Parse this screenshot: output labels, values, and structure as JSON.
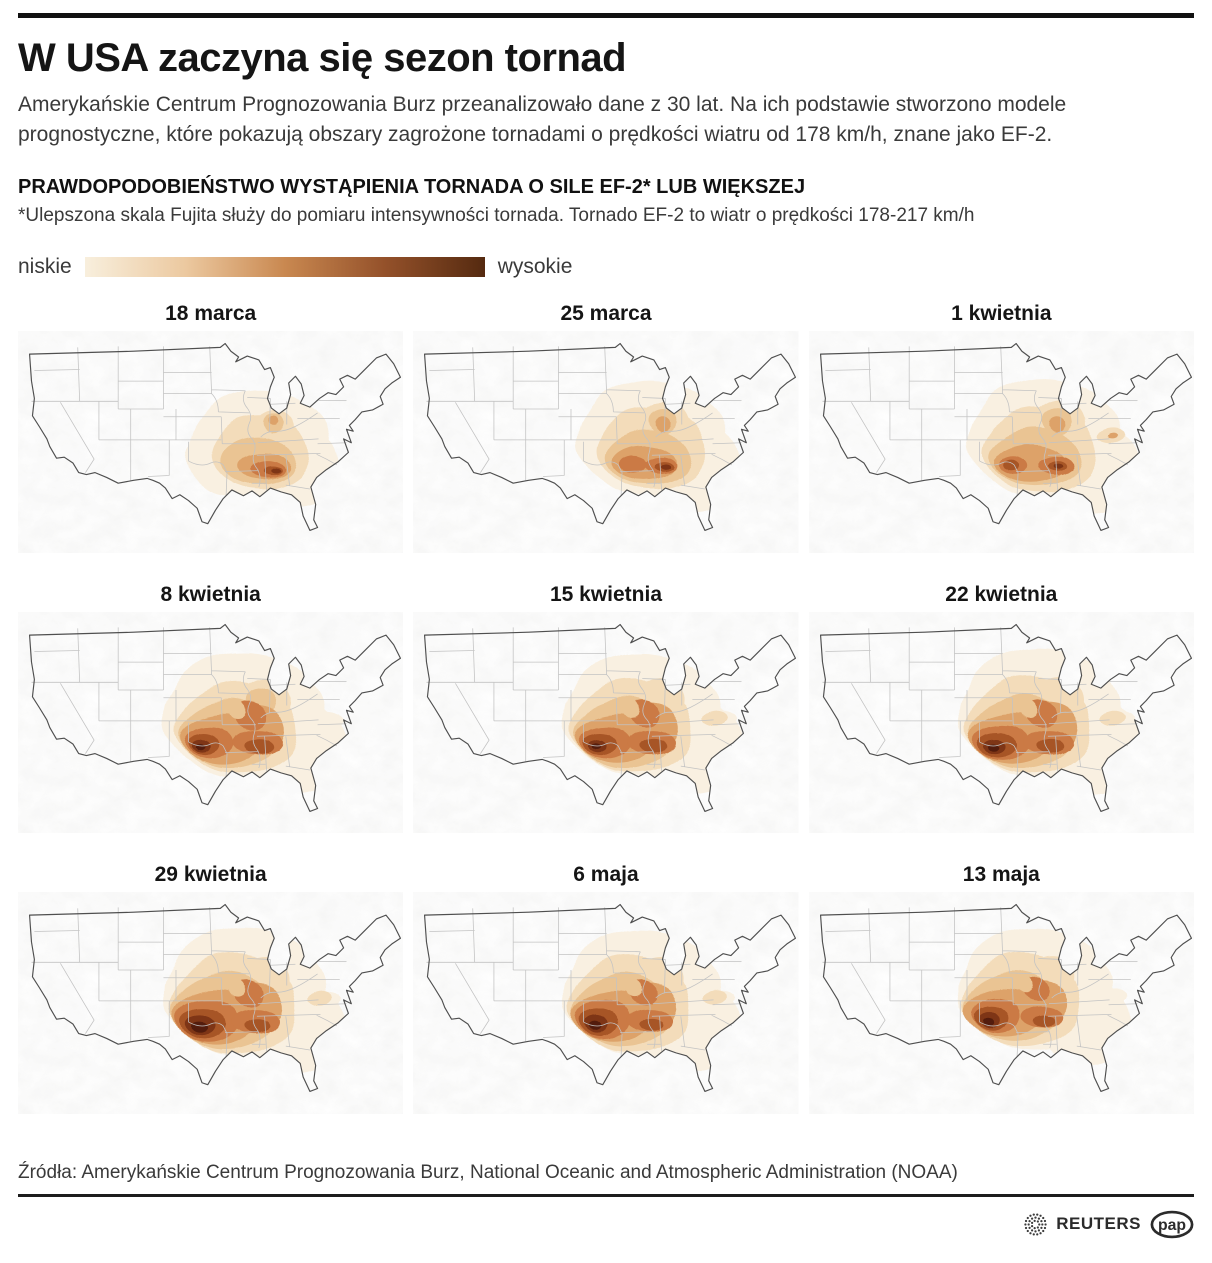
{
  "header": {
    "title": "W USA zaczyna się sezon tornad",
    "subtitle": "Amerykańskie Centrum Prognozowania Burz przeanalizowało dane z 30 lat. Na ich podstawie stworzono modele prognostyczne, które pokazują obszary zagrożone tornadami o prędkości wiatru od 178 km/h, znane jako EF-2."
  },
  "section": {
    "heading": "PRAWDOPODOBIEŃSTWO WYSTĄPIENIA TORNADA O SILE EF-2* LUB WIĘKSZEJ",
    "footnote": "*Ulepszona skala Fujita służy do pomiaru intensywności tornada. Tornado EF-2 to wiatr o prędkości 178-217 km/h"
  },
  "legend": {
    "low_label": "niskie",
    "high_label": "wysokie",
    "gradient": [
      "#f8efdd",
      "#ecc9a0",
      "#c98850",
      "#94512a",
      "#552a10"
    ]
  },
  "palette": [
    "#f9f0e1",
    "#f3dcba",
    "#eac493",
    "#dda269",
    "#cb7a44",
    "#a75426",
    "#7e3414",
    "#521f0a"
  ],
  "map_style": {
    "state_line_color": "#c3c3c3",
    "outline_color": "#4f4f4f",
    "terrain_gray": "#9e9e9c"
  },
  "maps": [
    {
      "date": "18 marca",
      "blobs": [
        [
          0,
          252,
          118,
          74,
          56
        ],
        [
          0,
          292,
          138,
          42,
          42
        ],
        [
          0,
          222,
          132,
          48,
          40
        ],
        [
          1,
          252,
          126,
          52,
          38
        ],
        [
          1,
          268,
          100,
          20,
          18
        ],
        [
          2,
          249,
          133,
          40,
          26
        ],
        [
          2,
          267,
          95,
          11,
          9
        ],
        [
          3,
          255,
          138,
          28,
          15
        ],
        [
          3,
          267,
          93,
          5.5,
          4.5
        ],
        [
          4,
          260,
          141,
          18,
          9.5
        ],
        [
          5,
          266,
          142,
          9,
          5
        ],
        [
          6,
          269,
          142,
          4.5,
          2.8
        ]
      ]
    },
    {
      "date": "25 marca",
      "blobs": [
        [
          0,
          248,
          112,
          78,
          60
        ],
        [
          0,
          294,
          140,
          48,
          46
        ],
        [
          1,
          248,
          122,
          58,
          42
        ],
        [
          1,
          262,
          96,
          26,
          23
        ],
        [
          2,
          244,
          130,
          46,
          29
        ],
        [
          2,
          261,
          93,
          15,
          12
        ],
        [
          3,
          240,
          135,
          35,
          19
        ],
        [
          3,
          261,
          96,
          8,
          7
        ],
        [
          4,
          228,
          137,
          15,
          10
        ],
        [
          4,
          258,
          137,
          17,
          9.5
        ],
        [
          5,
          262,
          138,
          10,
          5.5
        ],
        [
          6,
          264,
          138,
          5,
          3
        ]
      ]
    },
    {
      "date": "1 kwietnia",
      "blobs": [
        [
          0,
          245,
          112,
          80,
          62
        ],
        [
          0,
          296,
          142,
          50,
          46
        ],
        [
          1,
          240,
          124,
          60,
          44
        ],
        [
          1,
          261,
          95,
          27,
          24
        ],
        [
          1,
          316,
          108,
          14,
          8
        ],
        [
          2,
          235,
          130,
          49,
          31
        ],
        [
          2,
          259,
          93,
          16,
          13
        ],
        [
          3,
          230,
          136,
          39,
          21
        ],
        [
          3,
          259,
          96,
          8.5,
          7
        ],
        [
          3,
          318,
          108,
          5,
          3
        ],
        [
          4,
          211,
          138,
          15,
          10
        ],
        [
          4,
          257,
          137,
          19,
          10.5
        ],
        [
          5,
          209,
          138,
          8.5,
          6
        ],
        [
          5,
          259,
          137,
          10,
          5.5
        ],
        [
          6,
          260,
          137,
          5,
          3
        ]
      ]
    },
    {
      "date": "8 kwietnia",
      "blobs": [
        [
          0,
          235,
          108,
          84,
          66
        ],
        [
          0,
          290,
          140,
          54,
          46
        ],
        [
          0,
          320,
          115,
          20,
          12
        ],
        [
          1,
          228,
          121,
          64,
          47
        ],
        [
          1,
          257,
          94,
          28,
          25
        ],
        [
          2,
          220,
          127,
          52,
          36
        ],
        [
          2,
          254,
          92,
          16,
          13
        ],
        [
          3,
          212,
          131,
          43,
          28
        ],
        [
          3,
          249,
          120,
          30,
          24
        ],
        [
          4,
          198,
          134,
          25,
          18
        ],
        [
          4,
          249,
          133,
          27,
          14
        ],
        [
          4,
          241,
          106,
          17,
          13
        ],
        [
          2,
          227,
          101,
          9,
          8
        ],
        [
          5,
          192,
          136,
          16,
          12
        ],
        [
          5,
          251,
          137,
          16,
          9
        ],
        [
          6,
          189,
          138,
          10,
          7
        ],
        [
          7,
          188,
          139,
          5,
          3.5
        ]
      ]
    },
    {
      "date": "15 kwietnia",
      "blobs": [
        [
          0,
          238,
          107,
          82,
          64
        ],
        [
          0,
          292,
          140,
          54,
          47
        ],
        [
          0,
          322,
          112,
          16,
          10
        ],
        [
          1,
          228,
          119,
          64,
          48
        ],
        [
          1,
          257,
          92,
          27,
          24
        ],
        [
          1,
          316,
          110,
          13,
          8
        ],
        [
          2,
          220,
          126,
          52,
          37
        ],
        [
          3,
          211,
          130,
          42,
          27
        ],
        [
          3,
          248,
          118,
          30,
          24
        ],
        [
          4,
          199,
          134,
          27,
          18
        ],
        [
          4,
          248,
          133,
          26,
          14
        ],
        [
          4,
          240,
          104,
          16,
          12
        ],
        [
          2,
          226,
          100,
          9,
          8
        ],
        [
          5,
          193,
          136,
          18,
          12
        ],
        [
          5,
          250,
          136,
          15,
          8.5
        ],
        [
          6,
          190,
          138,
          10,
          6.5
        ],
        [
          7,
          189,
          138,
          5,
          3.2
        ]
      ]
    },
    {
      "date": "22 kwietnia",
      "blobs": [
        [
          0,
          240,
          105,
          84,
          68
        ],
        [
          0,
          296,
          140,
          54,
          48
        ],
        [
          0,
          324,
          112,
          16,
          10
        ],
        [
          1,
          229,
          118,
          66,
          50
        ],
        [
          1,
          259,
          92,
          28,
          25
        ],
        [
          1,
          318,
          110,
          13,
          8
        ],
        [
          2,
          221,
          125,
          54,
          38
        ],
        [
          3,
          210,
          130,
          44,
          28
        ],
        [
          3,
          250,
          118,
          32,
          25
        ],
        [
          4,
          199,
          134,
          30,
          20
        ],
        [
          4,
          249,
          133,
          27,
          14
        ],
        [
          4,
          241,
          104,
          17,
          12
        ],
        [
          2,
          228,
          100,
          9,
          8
        ],
        [
          5,
          194,
          137,
          21,
          14
        ],
        [
          5,
          251,
          136,
          15,
          8.5
        ],
        [
          6,
          191,
          139,
          12,
          8
        ],
        [
          7,
          190,
          140,
          6,
          4
        ]
      ]
    },
    {
      "date": "29 kwietnia",
      "blobs": [
        [
          0,
          236,
          104,
          84,
          68
        ],
        [
          0,
          290,
          140,
          52,
          46
        ],
        [
          0,
          322,
          112,
          15,
          9
        ],
        [
          1,
          225,
          117,
          66,
          52
        ],
        [
          1,
          256,
          92,
          28,
          25
        ],
        [
          1,
          316,
          110,
          12,
          8
        ],
        [
          2,
          215,
          124,
          55,
          40
        ],
        [
          3,
          205,
          129,
          44,
          30
        ],
        [
          3,
          247,
          118,
          30,
          24
        ],
        [
          4,
          196,
          132,
          33,
          24
        ],
        [
          4,
          247,
          132,
          26,
          14
        ],
        [
          4,
          239,
          104,
          16,
          12
        ],
        [
          2,
          227,
          99,
          9,
          8
        ],
        [
          5,
          191,
          135,
          24,
          17
        ],
        [
          5,
          249,
          136,
          14,
          8
        ],
        [
          6,
          188,
          137,
          16,
          11
        ],
        [
          7,
          187,
          139,
          9,
          6
        ]
      ]
    },
    {
      "date": "6 maja",
      "blobs": [
        [
          0,
          238,
          105,
          82,
          66
        ],
        [
          0,
          292,
          139,
          51,
          45
        ],
        [
          0,
          322,
          111,
          14,
          9
        ],
        [
          1,
          226,
          117,
          64,
          50
        ],
        [
          1,
          256,
          91,
          27,
          24
        ],
        [
          1,
          316,
          109,
          12,
          7.5
        ],
        [
          2,
          218,
          123,
          52,
          38
        ],
        [
          3,
          207,
          128,
          42,
          28
        ],
        [
          3,
          247,
          117,
          29,
          23
        ],
        [
          4,
          197,
          130,
          28,
          23
        ],
        [
          4,
          246,
          131,
          25,
          13
        ],
        [
          4,
          239,
          103,
          15,
          11
        ],
        [
          2,
          229,
          99,
          9,
          7.5
        ],
        [
          5,
          192,
          133,
          20,
          16
        ],
        [
          5,
          248,
          135,
          13,
          7.5
        ],
        [
          6,
          189,
          135,
          12,
          10
        ],
        [
          7,
          188,
          137,
          6.5,
          5
        ]
      ]
    },
    {
      "date": "13 maja",
      "blobs": [
        [
          0,
          235,
          101,
          80,
          64
        ],
        [
          0,
          287,
          135,
          49,
          43
        ],
        [
          0,
          319,
          108,
          13,
          8
        ],
        [
          1,
          222,
          113,
          62,
          48
        ],
        [
          1,
          252,
          89,
          26,
          23
        ],
        [
          2,
          212,
          119,
          50,
          36
        ],
        [
          3,
          202,
          124,
          40,
          26
        ],
        [
          3,
          243,
          113,
          27,
          21
        ],
        [
          4,
          194,
          126,
          24,
          20
        ],
        [
          4,
          242,
          127,
          23,
          12
        ],
        [
          4,
          236,
          100,
          14,
          10
        ],
        [
          2,
          225,
          96,
          8,
          7
        ],
        [
          5,
          189,
          129,
          17,
          14
        ],
        [
          5,
          244,
          131,
          12,
          7
        ],
        [
          6,
          187,
          131,
          10,
          9
        ],
        [
          7,
          186,
          133,
          5.5,
          4.5
        ]
      ]
    }
  ],
  "footer": {
    "sources": "Źródła: Amerykańskie Centrum Prognozowania Burz, National Oceanic and Atmospheric Administration (NOAA)",
    "reuters_label": "REUTERS",
    "pap_label": "pap"
  }
}
